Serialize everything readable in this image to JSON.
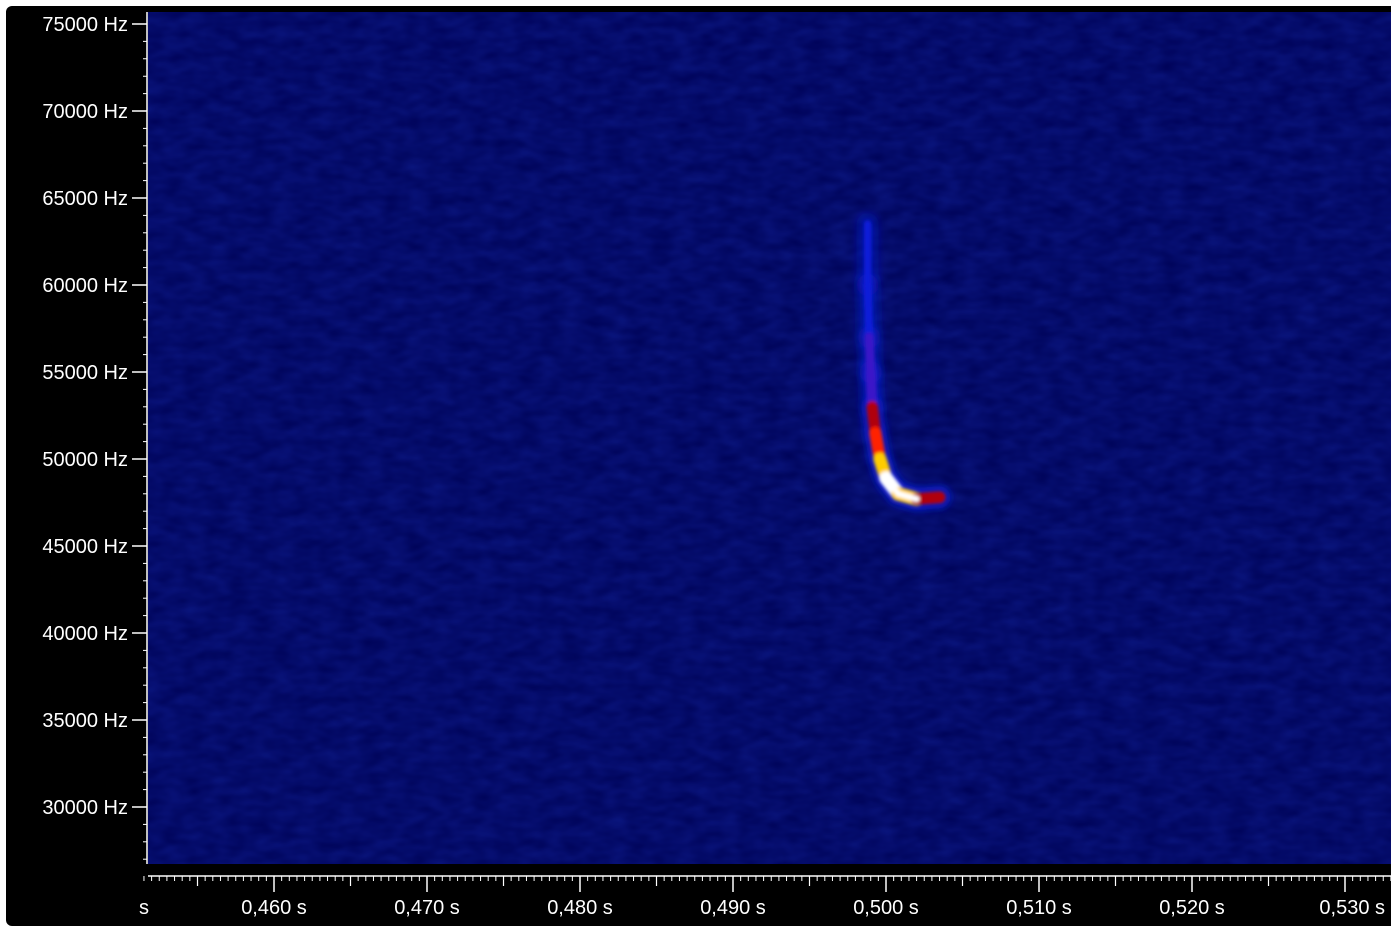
{
  "chart_data": {
    "type": "heatmap",
    "title": "",
    "xlabel": "",
    "ylabel": "",
    "x_unit": "s",
    "y_unit": "Hz",
    "x_tick_labels": [
      "s",
      "0,460 s",
      "0,470 s",
      "0,480 s",
      "0,490 s",
      "0,500 s",
      "0,510 s",
      "0,520 s",
      "0,530 s"
    ],
    "x_tick_values": [
      0.4515,
      0.46,
      0.47,
      0.48,
      0.49,
      0.5,
      0.51,
      0.52,
      0.53
    ],
    "y_tick_labels": [
      "75000 Hz",
      "70000 Hz",
      "65000 Hz",
      "60000 Hz",
      "55000 Hz",
      "50000 Hz",
      "45000 Hz",
      "40000 Hz",
      "35000 Hz",
      "30000 Hz"
    ],
    "y_tick_values": [
      75000,
      70000,
      65000,
      60000,
      55000,
      50000,
      45000,
      40000,
      35000,
      30000
    ],
    "xlim": [
      0.4515,
      0.5315
    ],
    "ylim": [
      26500,
      75500
    ],
    "background_color": "#00045a",
    "colormap": [
      "#00045a",
      "#0b1fd9",
      "#b0000c",
      "#ff2000",
      "#ffcc00",
      "#ffffff"
    ],
    "call": {
      "description_points": [
        {
          "t": 0.4988,
          "f": 63500,
          "intensity": 0.12
        },
        {
          "t": 0.4988,
          "f": 60000,
          "intensity": 0.22
        },
        {
          "t": 0.4989,
          "f": 57000,
          "intensity": 0.32
        },
        {
          "t": 0.499,
          "f": 55000,
          "intensity": 0.45
        },
        {
          "t": 0.4991,
          "f": 53000,
          "intensity": 0.62
        },
        {
          "t": 0.4993,
          "f": 51500,
          "intensity": 0.72
        },
        {
          "t": 0.4996,
          "f": 50000,
          "intensity": 0.82
        },
        {
          "t": 0.5,
          "f": 48900,
          "intensity": 0.95
        },
        {
          "t": 0.5008,
          "f": 48000,
          "intensity": 1.0
        },
        {
          "t": 0.502,
          "f": 47700,
          "intensity": 0.9
        },
        {
          "t": 0.5035,
          "f": 47800,
          "intensity": 0.55
        }
      ]
    }
  }
}
